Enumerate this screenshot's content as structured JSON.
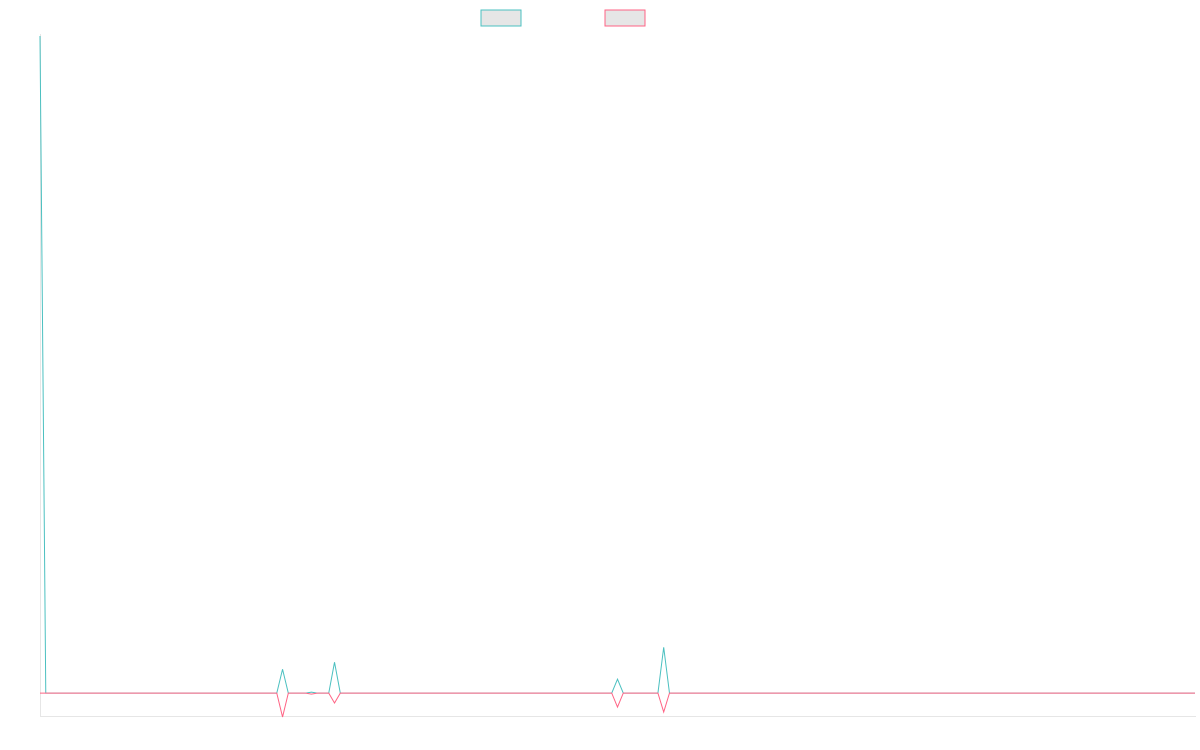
{
  "chart_data": {
    "type": "line",
    "title": "",
    "xlabel": "",
    "ylabel": "",
    "grid": false,
    "legend_position": "top",
    "x": [
      0,
      1,
      2,
      3,
      4,
      5,
      6,
      7,
      8,
      9,
      10,
      11,
      12,
      13,
      14,
      15,
      16,
      17,
      18,
      19,
      20,
      21,
      22,
      23,
      24,
      25,
      26,
      27,
      28,
      29,
      30,
      31,
      32,
      33,
      34,
      35,
      36,
      37,
      38,
      39,
      40,
      41,
      42,
      43,
      44,
      45,
      46,
      47,
      48,
      49,
      50,
      51,
      52,
      53,
      54,
      55,
      56,
      57,
      58,
      59,
      60,
      61,
      62,
      63,
      64,
      65,
      66,
      67,
      68,
      69,
      70,
      71,
      72,
      73,
      74,
      75,
      76,
      77,
      78,
      79,
      80,
      81,
      82,
      83,
      84,
      85,
      86,
      87,
      88,
      89,
      90,
      91,
      92,
      93,
      94,
      95,
      96,
      97,
      98,
      99,
      100,
      101,
      102,
      103,
      104,
      105,
      106,
      107,
      108,
      109,
      110,
      111,
      112,
      113,
      114,
      115,
      116,
      117,
      118,
      119,
      120,
      121,
      122,
      123,
      124,
      125,
      126,
      127,
      128,
      129,
      130,
      131,
      132,
      133,
      134,
      135,
      136,
      137,
      138,
      139,
      140,
      141,
      142,
      143,
      144,
      145,
      146,
      147,
      148,
      149,
      150,
      151,
      152,
      153,
      154,
      155,
      156,
      157,
      158,
      159,
      160,
      161,
      162,
      163,
      164,
      165,
      166,
      167,
      168,
      169,
      170,
      171,
      172,
      173,
      174,
      175,
      176,
      177,
      178,
      179,
      180,
      181,
      182,
      183,
      184,
      185,
      186,
      187,
      188,
      189,
      190,
      191,
      192,
      193,
      194,
      195,
      196,
      197,
      198,
      199,
      200
    ],
    "series": [
      {
        "name": "",
        "color": "#4bc0c0",
        "values": [
          660,
          0,
          0,
          0,
          0,
          0,
          0,
          0,
          0,
          0,
          0,
          0,
          0,
          0,
          0,
          0,
          0,
          0,
          0,
          0,
          0,
          0,
          0,
          0,
          0,
          0,
          0,
          0,
          0,
          0,
          0,
          0,
          0,
          0,
          0,
          0,
          0,
          0,
          0,
          0,
          0,
          0,
          24,
          0,
          0,
          0,
          0,
          1,
          0,
          0,
          0,
          31,
          0,
          0,
          0,
          0,
          0,
          0,
          0,
          0,
          0,
          0,
          0,
          0,
          0,
          0,
          0,
          0,
          0,
          0,
          0,
          0,
          0,
          0,
          0,
          0,
          0,
          0,
          0,
          0,
          0,
          0,
          0,
          0,
          0,
          0,
          0,
          0,
          0,
          0,
          0,
          0,
          0,
          0,
          0,
          0,
          0,
          0,
          0,
          0,
          14,
          0,
          0,
          0,
          0,
          0,
          0,
          0,
          46,
          0,
          0,
          0,
          0,
          0,
          0,
          0,
          0,
          0,
          0,
          0,
          0,
          0,
          0,
          0,
          0,
          0,
          0,
          0,
          0,
          0,
          0,
          0,
          0,
          0,
          0,
          0,
          0,
          0,
          0,
          0,
          0,
          0,
          0,
          0,
          0,
          0,
          0,
          0,
          0,
          0,
          0,
          0,
          0,
          0,
          0,
          0,
          0,
          0,
          0,
          0,
          0,
          0,
          0,
          0,
          0,
          0,
          0,
          0,
          0,
          0,
          0,
          0,
          0,
          0,
          0,
          0,
          0,
          0,
          0,
          0,
          0,
          0,
          0,
          0,
          0,
          0,
          0,
          0,
          0,
          0,
          0,
          0,
          0,
          0,
          0,
          0,
          0,
          0,
          0,
          0,
          0
        ]
      },
      {
        "name": "",
        "color": "#ff6384",
        "values": [
          0,
          0,
          0,
          0,
          0,
          0,
          0,
          0,
          0,
          0,
          0,
          0,
          0,
          0,
          0,
          0,
          0,
          0,
          0,
          0,
          0,
          0,
          0,
          0,
          0,
          0,
          0,
          0,
          0,
          0,
          0,
          0,
          0,
          0,
          0,
          0,
          0,
          0,
          0,
          0,
          0,
          0,
          -24,
          0,
          0,
          0,
          0,
          -1,
          0,
          0,
          0,
          -10,
          0,
          0,
          0,
          0,
          0,
          0,
          0,
          0,
          0,
          0,
          0,
          0,
          0,
          0,
          0,
          0,
          0,
          0,
          0,
          0,
          0,
          0,
          0,
          0,
          0,
          0,
          0,
          0,
          0,
          0,
          0,
          0,
          0,
          0,
          0,
          0,
          0,
          0,
          0,
          0,
          0,
          0,
          0,
          0,
          0,
          0,
          0,
          0,
          -14,
          0,
          0,
          0,
          0,
          0,
          0,
          0,
          -19,
          0,
          0,
          0,
          0,
          0,
          0,
          0,
          0,
          0,
          0,
          0,
          0,
          0,
          0,
          0,
          0,
          0,
          0,
          0,
          0,
          0,
          0,
          0,
          0,
          0,
          0,
          0,
          0,
          0,
          0,
          0,
          0,
          0,
          0,
          0,
          0,
          0,
          0,
          0,
          0,
          0,
          0,
          0,
          0,
          0,
          0,
          0,
          0,
          0,
          0,
          0,
          0,
          0,
          0,
          0,
          0,
          0,
          0,
          0,
          0,
          0,
          0,
          0,
          0,
          0,
          0,
          0,
          0,
          0,
          0,
          0,
          0,
          0,
          0,
          0,
          0,
          0,
          0,
          0,
          0,
          0,
          0,
          0,
          0,
          0,
          0,
          0,
          0,
          0,
          0,
          0,
          0
        ]
      }
    ],
    "xlim": [
      0,
      200
    ],
    "ylim": [
      -24,
      660
    ]
  }
}
